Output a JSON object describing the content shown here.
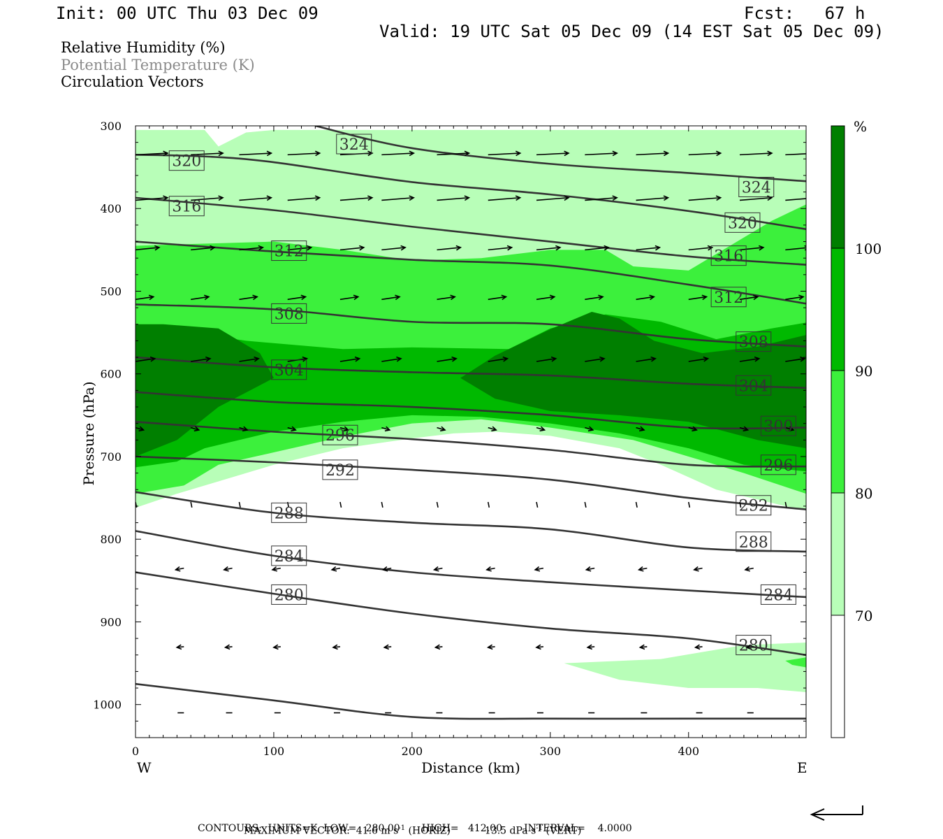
{
  "header": {
    "init": "Init: 00 UTC Thu 03 Dec 09",
    "fcst": "Fcst:   67 h",
    "valid": "Valid: 19 UTC Sat 05 Dec 09 (14 EST Sat 05 Dec 09)"
  },
  "fields": [
    {
      "label": "Relative Humidity (%)",
      "color": "#000000"
    },
    {
      "label": "Potential Temperature (K)",
      "color": "#8a8a8a"
    },
    {
      "label": "Circulation Vectors",
      "color": "#000000"
    }
  ],
  "colorbar": {
    "unit": "%",
    "levels": [
      "100",
      "90",
      "80",
      "70"
    ],
    "colors": [
      "#007f00",
      "#00b900",
      "#3cf03c",
      "#b8feb8",
      "#ffffff"
    ]
  },
  "footer": {
    "max_vector_label": "MAXIMUM VECTOR:",
    "max_vector_horiz": "41.6 m s",
    "horiz_note": "(HORIZ)",
    "max_vector_vert": "13.5 dPa s",
    "vert_note": "(VERT)",
    "exp": "-1",
    "contours": "CONTOURS:  UNITS=K  LOW=   280.00       HIGH=   412.00       INTERVAL=    4.0000"
  },
  "chart_data": {
    "type": "contour",
    "xlabel": "Distance (km)",
    "ylabel": "Pressure (hPa)",
    "xlim": [
      0,
      485
    ],
    "ylim": [
      1040,
      300
    ],
    "x_ticks": [
      0,
      100,
      200,
      300,
      400
    ],
    "y_ticks": [
      300,
      400,
      500,
      600,
      700,
      800,
      900,
      1000
    ],
    "x_end_labels": {
      "left": "W",
      "right": "E"
    },
    "isentropes": [
      {
        "value": 324,
        "points": [
          [
            130,
            300
          ],
          [
            200,
            327
          ],
          [
            300,
            346
          ],
          [
            400,
            357
          ],
          [
            485,
            367
          ]
        ],
        "labels": [
          [
            158,
            322
          ],
          [
            449,
            374
          ]
        ]
      },
      {
        "value": 320,
        "points": [
          [
            0,
            335
          ],
          [
            50,
            337
          ],
          [
            100,
            344
          ],
          [
            200,
            368
          ],
          [
            300,
            383
          ],
          [
            400,
            403
          ],
          [
            485,
            425
          ]
        ],
        "labels": [
          [
            37,
            342
          ],
          [
            439,
            417
          ]
        ]
      },
      {
        "value": 316,
        "points": [
          [
            0,
            387
          ],
          [
            100,
            402
          ],
          [
            200,
            422
          ],
          [
            300,
            440
          ],
          [
            400,
            458
          ],
          [
            485,
            468
          ]
        ],
        "labels": [
          [
            37,
            397
          ],
          [
            429,
            457
          ]
        ]
      },
      {
        "value": 312,
        "points": [
          [
            0,
            440
          ],
          [
            100,
            452
          ],
          [
            200,
            462
          ],
          [
            300,
            469
          ],
          [
            400,
            492
          ],
          [
            485,
            515
          ]
        ],
        "labels": [
          [
            111,
            451
          ],
          [
            429,
            507
          ]
        ]
      },
      {
        "value": 308,
        "points": [
          [
            0,
            516
          ],
          [
            100,
            522
          ],
          [
            200,
            537
          ],
          [
            300,
            540
          ],
          [
            400,
            558
          ],
          [
            485,
            567
          ]
        ],
        "labels": [
          [
            111,
            527
          ],
          [
            447,
            561
          ]
        ]
      },
      {
        "value": 304,
        "points": [
          [
            0,
            580
          ],
          [
            100,
            592
          ],
          [
            200,
            598
          ],
          [
            300,
            602
          ],
          [
            400,
            612
          ],
          [
            485,
            617
          ]
        ],
        "labels": [
          [
            111,
            595
          ],
          [
            447,
            614
          ]
        ]
      },
      {
        "value": 300,
        "points": [
          [
            0,
            622
          ],
          [
            100,
            634
          ],
          [
            200,
            640
          ],
          [
            300,
            650
          ],
          [
            400,
            665
          ],
          [
            485,
            665
          ]
        ],
        "labels": [
          [
            465,
            663
          ]
        ]
      },
      {
        "value": 296,
        "points": [
          [
            0,
            658
          ],
          [
            100,
            670
          ],
          [
            200,
            679
          ],
          [
            300,
            692
          ],
          [
            400,
            710
          ],
          [
            485,
            712
          ]
        ],
        "labels": [
          [
            148,
            674
          ],
          [
            465,
            710
          ]
        ]
      },
      {
        "value": 292,
        "points": [
          [
            0,
            700
          ],
          [
            100,
            707
          ],
          [
            200,
            716
          ],
          [
            300,
            728
          ],
          [
            400,
            750
          ],
          [
            485,
            764
          ]
        ],
        "labels": [
          [
            148,
            716
          ],
          [
            447,
            759
          ]
        ]
      },
      {
        "value": 288,
        "points": [
          [
            0,
            743
          ],
          [
            100,
            768
          ],
          [
            200,
            780
          ],
          [
            300,
            788
          ],
          [
            400,
            810
          ],
          [
            485,
            815
          ]
        ],
        "labels": [
          [
            111,
            768
          ],
          [
            447,
            803
          ]
        ]
      },
      {
        "value": 284,
        "points": [
          [
            0,
            790
          ],
          [
            100,
            820
          ],
          [
            200,
            840
          ],
          [
            300,
            852
          ],
          [
            400,
            862
          ],
          [
            485,
            870
          ]
        ],
        "labels": [
          [
            111,
            820
          ],
          [
            465,
            867
          ]
        ]
      },
      {
        "value": 280,
        "points": [
          [
            0,
            840
          ],
          [
            100,
            866
          ],
          [
            200,
            890
          ],
          [
            300,
            908
          ],
          [
            400,
            920
          ],
          [
            485,
            940
          ]
        ],
        "labels": [
          [
            111,
            867
          ],
          [
            447,
            928
          ]
        ]
      },
      {
        "value": null,
        "points": [
          [
            0,
            975
          ],
          [
            100,
            995
          ],
          [
            200,
            1015
          ],
          [
            300,
            1017
          ],
          [
            400,
            1017
          ],
          [
            485,
            1017
          ]
        ],
        "labels": []
      }
    ],
    "rh_regions": [
      {
        "level": "70-80",
        "color": "#b8feb8",
        "points": [
          [
            0,
            305
          ],
          [
            50,
            305
          ],
          [
            60,
            325
          ],
          [
            80,
            308
          ],
          [
            100,
            305
          ],
          [
            485,
            305
          ],
          [
            485,
            765
          ],
          [
            470,
            760
          ],
          [
            420,
            740
          ],
          [
            380,
            710
          ],
          [
            350,
            690
          ],
          [
            300,
            675
          ],
          [
            260,
            670
          ],
          [
            230,
            672
          ],
          [
            200,
            678
          ],
          [
            150,
            690
          ],
          [
            100,
            710
          ],
          [
            60,
            730
          ],
          [
            30,
            745
          ],
          [
            0,
            762
          ]
        ]
      },
      {
        "level": "70-80",
        "color": "#b8feb8",
        "points": [
          [
            310,
            950
          ],
          [
            380,
            945
          ],
          [
            440,
            928
          ],
          [
            485,
            925
          ],
          [
            485,
            985
          ],
          [
            450,
            980
          ],
          [
            400,
            980
          ],
          [
            350,
            970
          ]
        ]
      },
      {
        "level": "80-90",
        "color": "#3cf03c",
        "points": [
          [
            0,
            445
          ],
          [
            100,
            440
          ],
          [
            150,
            450
          ],
          [
            200,
            463
          ],
          [
            250,
            460
          ],
          [
            300,
            450
          ],
          [
            340,
            450
          ],
          [
            360,
            470
          ],
          [
            400,
            475
          ],
          [
            430,
            445
          ],
          [
            460,
            415
          ],
          [
            485,
            395
          ],
          [
            485,
            745
          ],
          [
            440,
            720
          ],
          [
            400,
            700
          ],
          [
            360,
            680
          ],
          [
            300,
            665
          ],
          [
            250,
            655
          ],
          [
            200,
            660
          ],
          [
            150,
            676
          ],
          [
            100,
            695
          ],
          [
            60,
            710
          ],
          [
            35,
            735
          ],
          [
            0,
            745
          ]
        ]
      },
      {
        "level": "90-100",
        "color": "#00b900",
        "points": [
          [
            0,
            540
          ],
          [
            20,
            545
          ],
          [
            80,
            560
          ],
          [
            150,
            570
          ],
          [
            200,
            568
          ],
          [
            270,
            570
          ],
          [
            300,
            545
          ],
          [
            340,
            528
          ],
          [
            380,
            537
          ],
          [
            420,
            558
          ],
          [
            460,
            545
          ],
          [
            485,
            538
          ],
          [
            485,
            718
          ],
          [
            440,
            710
          ],
          [
            400,
            690
          ],
          [
            350,
            672
          ],
          [
            300,
            660
          ],
          [
            250,
            652
          ],
          [
            200,
            650
          ],
          [
            150,
            658
          ],
          [
            100,
            670
          ],
          [
            50,
            690
          ],
          [
            30,
            706
          ],
          [
            0,
            713
          ]
        ]
      },
      {
        "level": "100",
        "color": "#007f00",
        "points": [
          [
            0,
            540
          ],
          [
            20,
            540
          ],
          [
            60,
            545
          ],
          [
            90,
            575
          ],
          [
            100,
            605
          ],
          [
            60,
            640
          ],
          [
            30,
            680
          ],
          [
            0,
            700
          ]
        ]
      },
      {
        "level": "100",
        "color": "#007f00",
        "points": [
          [
            235,
            605
          ],
          [
            260,
            578
          ],
          [
            300,
            546
          ],
          [
            330,
            525
          ],
          [
            350,
            533
          ],
          [
            375,
            560
          ],
          [
            410,
            575
          ],
          [
            450,
            567
          ],
          [
            485,
            553
          ],
          [
            485,
            690
          ],
          [
            450,
            680
          ],
          [
            400,
            658
          ],
          [
            350,
            650
          ],
          [
            300,
            645
          ],
          [
            260,
            630
          ]
        ]
      },
      {
        "level": "80-90",
        "color": "#3cf03c",
        "points": [
          [
            470,
            947
          ],
          [
            485,
            943
          ],
          [
            485,
            955
          ],
          [
            475,
            952
          ]
        ]
      }
    ],
    "vectors": [
      {
        "row": 335,
        "xs": [
          0,
          40,
          75,
          110,
          148,
          178,
          218,
          255,
          290,
          325,
          362,
          400,
          437,
          470
        ],
        "u": 1,
        "w": -0.05,
        "len": 46
      },
      {
        "row": 390,
        "xs": [
          0,
          40,
          75,
          110,
          148,
          178,
          218,
          255,
          290,
          325,
          362,
          400,
          437,
          470
        ],
        "u": 1,
        "w": -0.08,
        "len": 46
      },
      {
        "row": 450,
        "xs": [
          0,
          40,
          75,
          110,
          148,
          178,
          218,
          255,
          290,
          325,
          362,
          400,
          437,
          470
        ],
        "u": 1,
        "w": -0.1,
        "len": 34
      },
      {
        "row": 510,
        "xs": [
          0,
          40,
          75,
          110,
          148,
          178,
          218,
          255,
          290,
          325,
          362,
          400,
          437,
          470
        ],
        "u": 1,
        "w": -0.15,
        "len": 26
      },
      {
        "row": 585,
        "xs": [
          0,
          40,
          75,
          110,
          148,
          178,
          218,
          255,
          290,
          325,
          362,
          400,
          437,
          470
        ],
        "u": 1,
        "w": -0.15,
        "len": 28
      },
      {
        "row": 665,
        "xs": [
          0,
          40,
          75,
          110,
          148,
          178,
          218,
          255,
          290,
          325,
          362,
          400,
          437,
          470
        ],
        "u": 1,
        "w": 0.3,
        "len": 12
      },
      {
        "row": 755,
        "xs": [
          0,
          40,
          75,
          110,
          148,
          178,
          218,
          255,
          290,
          325,
          362,
          400,
          437,
          470
        ],
        "u": 0.2,
        "w": 1,
        "len": 8
      },
      {
        "row": 835,
        "xs": [
          35,
          70,
          105,
          148,
          185,
          222,
          260,
          295,
          332,
          370,
          410,
          447
        ],
        "u": -1,
        "w": 0.2,
        "len": 12
      },
      {
        "row": 930,
        "xs": [
          35,
          70,
          105,
          148,
          185,
          222,
          260,
          295,
          332,
          370,
          410,
          447
        ],
        "u": -1,
        "w": 0.1,
        "len": 10
      },
      {
        "row": 1010,
        "xs": [
          35,
          70,
          105,
          148,
          185,
          222,
          260,
          295,
          332,
          370,
          410,
          447
        ],
        "u": -1,
        "w": 0,
        "len": 9
      }
    ]
  }
}
